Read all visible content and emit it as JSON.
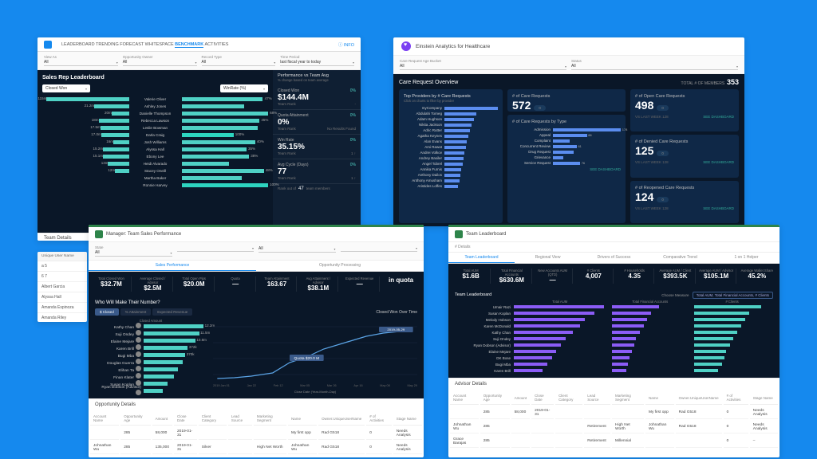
{
  "colors": {
    "bg": "#1589ee",
    "dark": "#0a1728",
    "teal": "#4fd1c5",
    "purple": "#8b5cf6",
    "blue": "#5b8def",
    "green": "#2e844a"
  },
  "p1": {
    "tabs": [
      "LEADERBOARD",
      "TRENDING",
      "FORECAST",
      "WHITESPACE",
      "BENCHMARK",
      "ACTIVITIES"
    ],
    "activeTab": 4,
    "info": "INFO",
    "filters": [
      {
        "label": "View As",
        "val": "All"
      },
      {
        "label": "Opportunity Owner",
        "val": "All"
      },
      {
        "label": "Record Type",
        "val": "All"
      },
      {
        "label": "Time Period",
        "val": "last fiscal year to today"
      }
    ],
    "title": "Sales Rep Leaderboard",
    "dd1": "Closed Won",
    "dd2": "WinRate (%)",
    "leftBars": [
      {
        "label": "",
        "v": 0.95,
        "txt": "115m"
      },
      {
        "label": "",
        "v": 0.4,
        "txt": "21.2m"
      },
      {
        "label": "",
        "v": 0.2,
        "txt": "20m"
      },
      {
        "label": "",
        "v": 0.35,
        "txt": "18m"
      },
      {
        "label": "",
        "v": 0.33,
        "txt": "17.5m"
      },
      {
        "label": "",
        "v": 0.32,
        "txt": "17.0m"
      },
      {
        "label": "",
        "v": 0.18,
        "txt": "16m"
      },
      {
        "label": "",
        "v": 0.3,
        "txt": "15.2m"
      },
      {
        "label": "",
        "v": 0.3,
        "txt": "15.1m"
      },
      {
        "label": "",
        "v": 0.24,
        "txt": "13m"
      },
      {
        "label": "",
        "v": 0.16,
        "txt": "12m"
      }
    ],
    "names": [
      "Valerie Oliver",
      "Ashley Jones",
      "Danielle Thompson",
      "Rebecca Lawson",
      "Leslie Bowman",
      "Darla Craig",
      "Josh Williams",
      "Alyssa Hall",
      "Ebony Lee",
      "Heidi Alvarado",
      "Stacey Oneill",
      "Martha Baker",
      "Ronnie Harvey"
    ],
    "rightBars": [
      {
        "v": 0.94,
        "txt": "47%"
      },
      {
        "v": 0.72,
        "txt": ""
      },
      {
        "v": 1.0,
        "txt": "68%"
      },
      {
        "v": 0.9,
        "txt": "45%"
      },
      {
        "v": 0.88,
        "txt": ""
      },
      {
        "v": 0.6,
        "txt": "100%",
        "hl": true
      },
      {
        "v": 0.85,
        "txt": "40%"
      },
      {
        "v": 0.75,
        "txt": "35%"
      },
      {
        "v": 0.78,
        "txt": "38%"
      },
      {
        "v": 0.55,
        "txt": ""
      },
      {
        "v": 0.95,
        "txt": "48%"
      },
      {
        "v": 0.7,
        "txt": ""
      },
      {
        "v": 1.0,
        "txt": "100%",
        "hl": true
      }
    ],
    "perfTitle": "Performance vs Team Avg",
    "perfSub": "% change based on team average",
    "kpis": [
      {
        "label": "Closed Won",
        "val": "$144.4M",
        "pct": "0%",
        "sub": "Team Rank",
        "sub2": "-"
      },
      {
        "label": "Quota Attainment",
        "val": "0%",
        "pct": "0%",
        "sub": "Team Rank",
        "sub2": "No Results Found"
      },
      {
        "label": "Win Rate",
        "val": "35.15%",
        "pct": "0%",
        "sub": "Team Rank",
        "sub2": "1 ↑"
      },
      {
        "label": "Avg Cycle (Days)",
        "val": "77",
        "pct": "0%",
        "sub": "Team Rank",
        "sub2": "1 ↑"
      }
    ],
    "rankOut": "Rank out of",
    "rankN": "47",
    "rankMembers": "team members",
    "teamDetails": "Team Details",
    "sideHeader": "Unique User Name",
    "sideItems": [
      "a 5",
      "6 7",
      "Albert Garcia",
      "Alyssa Hall",
      "Amanda Espinoza",
      "Amanda Riley"
    ]
  },
  "p2": {
    "title": "Einstein Analytics for Healthcare",
    "filters": [
      {
        "label": "Care Request Age Bucket",
        "val": "All"
      },
      {
        "label": "Status",
        "val": "All"
      }
    ],
    "overview": "Care Request Overview",
    "totalLabel": "TOTAL # OF MEMBERS",
    "totalVal": "353",
    "topProv": "Top Providers by # Care Requests",
    "topSub": "Click on charts to filter by provider",
    "providers": [
      {
        "n": "myCompany",
        "v": 1.0
      },
      {
        "n": "Abdulahi Torneg",
        "v": 0.6
      },
      {
        "n": "Adam Hughson",
        "v": 0.55
      },
      {
        "n": "Nikita Jackson",
        "v": 0.5
      },
      {
        "n": "Adric Rutter",
        "v": 0.48
      },
      {
        "n": "Agatha Keynes",
        "v": 0.45
      },
      {
        "n": "Alan Evans",
        "v": 0.42
      },
      {
        "n": "Ami Rawat",
        "v": 0.4
      },
      {
        "n": "Andrei Volkov",
        "v": 0.38
      },
      {
        "n": "Andrey Basiler",
        "v": 0.36
      },
      {
        "n": "Angel Tobrel",
        "v": 0.34
      },
      {
        "n": "Annika Furnis",
        "v": 0.32
      },
      {
        "n": "Anthony Dailos",
        "v": 0.3
      },
      {
        "n": "Anthony Amusham",
        "v": 0.28
      },
      {
        "n": "Aristides Loffes",
        "v": 0.26
      }
    ],
    "cards": [
      {
        "title": "# of Care Requests",
        "big": "572",
        "pill": "0",
        "sub": "VS LAST WEEK    128"
      },
      {
        "title": "# of Open Care Requests",
        "big": "498",
        "pill": "0",
        "sub": "VS LAST WEEK    128",
        "link": "SEE DASHBOARD"
      },
      {
        "title": "# of Denied Care Requests",
        "big": "125",
        "pill": "0",
        "sub": "VS LAST WEEK    128",
        "link": "SEE DASHBOARD"
      },
      {
        "title": "# of Reopened Care Requests",
        "big": "124",
        "pill": "0",
        "sub": "VS LAST WEEK    128",
        "link": "SEE DASHBOARD"
      }
    ],
    "typeTitle": "# of Care Requests by Type",
    "types": [
      {
        "n": "Admission",
        "v": 1.0,
        "txt": "178"
      },
      {
        "n": "Appeal",
        "v": 0.5,
        "txt": "88"
      },
      {
        "n": "Complaint",
        "v": 0.25,
        "txt": ""
      },
      {
        "n": "Concurrent Review",
        "v": 0.35,
        "txt": "61"
      },
      {
        "n": "Drug Request",
        "v": 0.3,
        "txt": ""
      },
      {
        "n": "Grievance",
        "v": 0.15,
        "txt": ""
      },
      {
        "n": "Service Request",
        "v": 0.4,
        "txt": "76"
      }
    ],
    "seeDash": "SEE DASHBOARD"
  },
  "p3": {
    "header": "Manager: Team Sales Performance",
    "filters": [
      {
        "label": "State",
        "val": "All"
      },
      {
        "label": "",
        "val": ""
      },
      {
        "label": "",
        "val": "All"
      },
      {
        "label": "",
        "val": ""
      }
    ],
    "subtabs": [
      "Sales Performance",
      "Opportunity Processing"
    ],
    "activeSub": 0,
    "kpis": [
      {
        "label": "Total Closed Won",
        "val": "$32.7M"
      },
      {
        "label": "Average Closed / Advisor",
        "val": "$2.5M"
      },
      {
        "label": "Total Open Pips",
        "val": "$20.0M"
      },
      {
        "label": "Quota",
        "val": "—"
      },
      {
        "label": "Team Attainment",
        "val": "163.67"
      },
      {
        "label": "Avg Attainment / Advisor",
        "val": "$38.1M"
      },
      {
        "label": "Expected Revenue",
        "val": "—"
      },
      {
        "label": "",
        "val": "in quota"
      }
    ],
    "whoTitle": "Who Will Make Their Number?",
    "toggles": [
      "$ Closed",
      "% Attainment",
      "Expected Revenue"
    ],
    "activeToggle": 0,
    "closedAmt": "Closed Amount",
    "reps": [
      {
        "n": "Kathy Chan",
        "v": 0.95,
        "txt": "12.2m"
      },
      {
        "n": "Suji Ondey",
        "v": 0.88,
        "txt": "11.5m"
      },
      {
        "n": "Elaine Mejare",
        "v": 0.82,
        "txt": "10.8m"
      },
      {
        "n": "Karen Brill",
        "v": 0.7,
        "txt": "372k"
      },
      {
        "n": "Bugi Mba",
        "v": 0.66,
        "txt": "370k"
      },
      {
        "n": "Douglas Guerra",
        "v": 0.62,
        "txt": ""
      },
      {
        "n": "Elihan Ta",
        "v": 0.55,
        "txt": ""
      },
      {
        "n": "Finan Klater",
        "v": 0.48,
        "txt": ""
      },
      {
        "n": "Susan Koplan",
        "v": 0.38,
        "txt": ""
      },
      {
        "n": "Ryan Dobson (Advisor)",
        "v": 0.3,
        "txt": ""
      }
    ],
    "lineTitle": "Closed Won Over Time",
    "lineQuota": "Quota $20.0 M",
    "xLabel": "Close Date (Year-Month-Day)",
    "xTicks": [
      "2019 Jan 01",
      "Jan 22",
      "Feb 12",
      "Mar 05",
      "Mar 26",
      "Apr 16",
      "May 08",
      "May 29"
    ],
    "oppTitle": "Opportunity Details",
    "cols": [
      "Account Name",
      "Opportunity Age",
      "Amount",
      "Close Date",
      "Client Category",
      "Lead Source",
      "Marketing Segment",
      "Name",
      "Owner.UniqueUserName",
      "# of Activities",
      "Stage Name"
    ],
    "rows": [
      [
        "",
        "285",
        "58,000",
        "2019-01-31",
        "",
        "",
        "",
        "My first opp",
        "Rad G518",
        "0",
        "Needs Analysis"
      ],
      [
        "Johnathan Wu",
        "285",
        "135,000",
        "2019-01-31",
        "Silver",
        "",
        "High Net Worth",
        "Johnathan Wu",
        "Rad G518",
        "0",
        "Needs Analysis"
      ],
      [
        "Grace Barajas",
        "285",
        "135,000",
        "2019-01-31",
        "Platinum",
        "",
        "Millennial",
        "Grace Barajas",
        "Rad G518",
        "0",
        "–"
      ]
    ]
  },
  "p4": {
    "header": "Team Leaderboard",
    "detailsLabel": "# Details",
    "subtabs": [
      "Team Leaderboard",
      "Regional View",
      "Drivers of Success",
      "Comparative Trend",
      "1 on 1 Helper"
    ],
    "activeSub": 0,
    "kpis": [
      {
        "label": "Total AUM",
        "val": "$1.6B"
      },
      {
        "label": "Total Financial Accounts",
        "val": "$630.6M"
      },
      {
        "label": "New Accounts AUM (QTD)",
        "val": "—"
      },
      {
        "label": "# Clients",
        "val": "4,007"
      },
      {
        "label": "# Households",
        "val": "4.35"
      },
      {
        "label": "Average AUM / Client",
        "val": "$393.5K"
      },
      {
        "label": "Average AUM / Advisor",
        "val": "$105.1M"
      },
      {
        "label": "Average Wallet Share",
        "val": "45.2%"
      }
    ],
    "tlTitle": "Team Leaderboard",
    "metricLabel": "Choose Measure",
    "metricVal": "Total AUM, Total Financial Accounts, # Clients",
    "chartHeaders": [
      "Total AUM",
      "Total Financial Accounts",
      "# Clients"
    ],
    "reps": [
      {
        "n": "Umair Razi",
        "a": 0.95,
        "b": 0.6,
        "c": 0.85
      },
      {
        "n": "Susan Koplan",
        "a": 0.85,
        "b": 0.5,
        "c": 0.7
      },
      {
        "n": "Melody Hobson",
        "a": 0.75,
        "b": 0.45,
        "c": 0.65
      },
      {
        "n": "Karen McDonald",
        "a": 0.7,
        "b": 0.4,
        "c": 0.6
      },
      {
        "n": "Kathy Chan",
        "a": 0.62,
        "b": 0.35,
        "c": 0.55
      },
      {
        "n": "Suji Ondey",
        "a": 0.55,
        "b": 0.3,
        "c": 0.5
      },
      {
        "n": "Ryan Dobson (Advisor)",
        "a": 0.5,
        "b": 0.28,
        "c": 0.45
      },
      {
        "n": "Elaine Mejare",
        "a": 0.45,
        "b": 0.25,
        "c": 0.4
      },
      {
        "n": "DK Bose",
        "a": 0.4,
        "b": 0.22,
        "c": 0.38
      },
      {
        "n": "Bugi Mba",
        "a": 0.35,
        "b": 0.2,
        "c": 0.35
      },
      {
        "n": "Karen Brill",
        "a": 0.3,
        "b": 0.18,
        "c": 0.3
      }
    ],
    "advTitle": "Advisor Details",
    "cols": [
      "Account Name",
      "Opportunity Age",
      "Amount",
      "Close Date",
      "Client Category",
      "Lead Source",
      "Marketing Segment",
      "Name",
      "Owner.UniqueUserName",
      "# of Activities",
      "Stage Name"
    ],
    "rows": [
      [
        "",
        "285",
        "58,000",
        "2019-01-31",
        "",
        "",
        "",
        "My first opp",
        "Rad G518",
        "0",
        "Needs Analysis"
      ],
      [
        "Johnathan Wu",
        "285",
        "",
        "",
        "",
        "Retirement",
        "High Net Worth",
        "Johnathan Wu",
        "Rad G518",
        "0",
        "Needs Analysis"
      ],
      [
        "Grace Barajas",
        "285",
        "",
        "",
        "",
        "Retirement",
        "Millennial",
        "",
        "",
        "0",
        "–"
      ]
    ]
  }
}
